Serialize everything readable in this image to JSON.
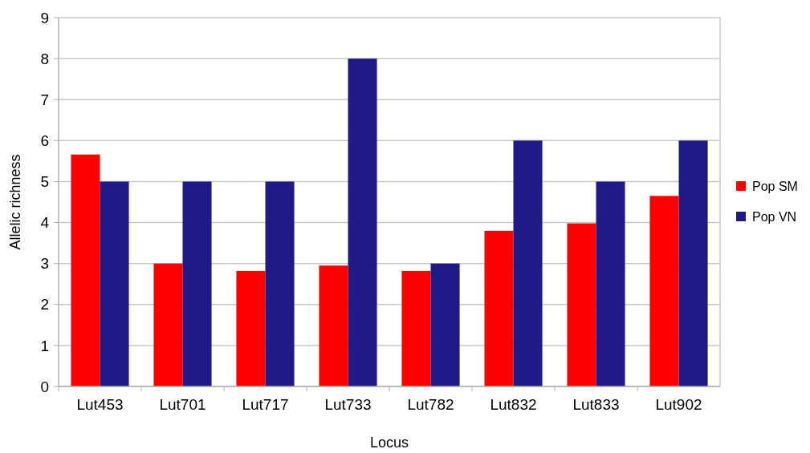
{
  "chart_data": {
    "type": "bar",
    "xlabel": "Locus",
    "ylabel": "Allelic richness",
    "categories": [
      "Lut453",
      "Lut701",
      "Lut717",
      "Lut733",
      "Lut782",
      "Lut832",
      "Lut833",
      "Lut902"
    ],
    "series": [
      {
        "name": "Pop SM",
        "color": "#ff0000",
        "values": [
          5.66,
          3.0,
          2.82,
          2.95,
          2.82,
          3.8,
          3.98,
          4.65
        ]
      },
      {
        "name": "Pop VN",
        "color": "#1f1a87",
        "values": [
          5,
          5,
          5,
          8,
          3,
          6,
          5,
          6
        ]
      }
    ],
    "ylim": [
      0,
      9
    ],
    "yticks": [
      0,
      1,
      2,
      3,
      4,
      5,
      6,
      7,
      8,
      9
    ],
    "grid": "y",
    "legend": "right"
  }
}
